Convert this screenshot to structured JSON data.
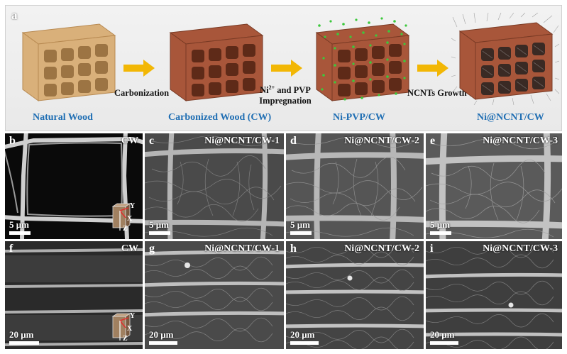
{
  "figure": {
    "panel_a": {
      "letter": "a",
      "stages": [
        "Natural Wood",
        "Carbonized Wood (CW)",
        "Ni-PVP/CW",
        "Ni@NCNT/CW"
      ],
      "steps": {
        "carbonization": "Carbonization",
        "impregnation_line1": "Ni",
        "impregnation_sup": "2+",
        "impregnation_line1_rest": " and PVP",
        "impregnation_line2": "Impregnation",
        "growth": "NCNTs Growth"
      }
    },
    "top_row": [
      {
        "letter": "b",
        "title": "CW",
        "scale": "5 μm",
        "axes": {
          "y": "Y",
          "x": "X",
          "z": "Z"
        }
      },
      {
        "letter": "c",
        "title": "Ni@NCNT/CW-1",
        "scale": "5 μm"
      },
      {
        "letter": "d",
        "title": "Ni@NCNT/CW-2",
        "scale": "5 μm"
      },
      {
        "letter": "e",
        "title": "Ni@NCNT/CW-3",
        "scale": "5 μm"
      }
    ],
    "bottom_row": [
      {
        "letter": "f",
        "title": "CW",
        "scale": "20 μm",
        "axes": {
          "y": "Y",
          "x": "X",
          "z": "Z"
        }
      },
      {
        "letter": "g",
        "title": "Ni@NCNT/CW-1",
        "scale": "20 μm"
      },
      {
        "letter": "h",
        "title": "Ni@NCNT/CW-2",
        "scale": "20 μm"
      },
      {
        "letter": "i",
        "title": "Ni@NCNT/CW-3",
        "scale": "20 μm"
      }
    ],
    "colors": {
      "stage_label": "#1f6eb3",
      "arrow": "#f2b705",
      "natural_wood": "#d9b07a",
      "carbonized_wood": "#a8563a",
      "ni_particles": "#3cc83c"
    }
  }
}
